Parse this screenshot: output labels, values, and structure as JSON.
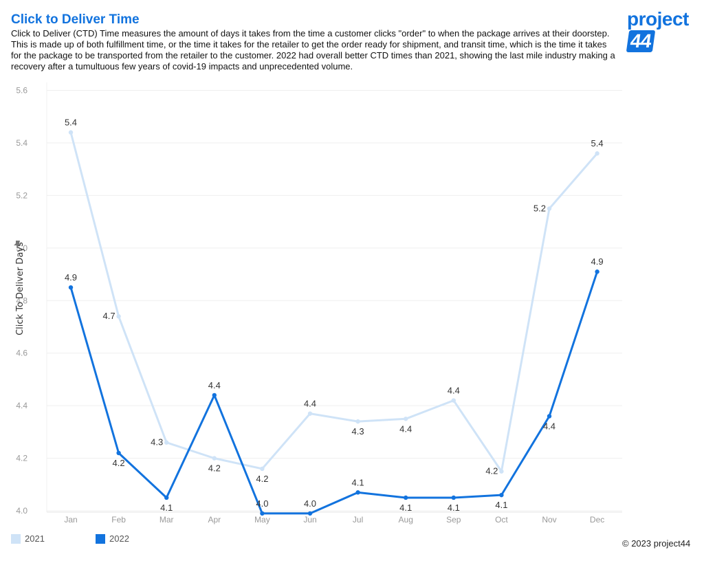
{
  "header": {
    "title": "Click to Deliver Time",
    "description": "Click to Deliver (CTD) Time measures the amount of days it takes from the time a customer clicks \"order\" to when the package arrives at their doorstep. This is made up of both fulfillment time, or the time it takes for the retailer to get the order ready for shipment, and transit time, which is the time it takes for the package to be transported from the retailer to the customer. 2022 had overall better CTD times than 2021, showing the last mile industry making a recovery after a tumultuous few years of covid-19 impacts and unprecedented volume."
  },
  "logo": {
    "text": "project",
    "number": "44"
  },
  "footer": {
    "copyright": "© 2023 project44"
  },
  "chart_data": {
    "type": "line",
    "title": "",
    "xlabel": "",
    "ylabel": "Click To Deliver Days",
    "ylim": [
      3.995,
      5.63
    ],
    "yticks": [
      4.0,
      4.2,
      4.4,
      4.6,
      4.8,
      5.0,
      5.2,
      5.4,
      5.6
    ],
    "ytick_labels": [
      "4.0",
      "4.2",
      "4.4",
      "4.6",
      "4.8",
      "5.0",
      "5.2",
      "5.4",
      "5.6"
    ],
    "categories": [
      "Jan",
      "Feb",
      "Mar",
      "Apr",
      "May",
      "Jun",
      "Jul",
      "Aug",
      "Sep",
      "Oct",
      "Nov",
      "Dec"
    ],
    "grid": true,
    "legend_position": "bottom-left",
    "series": [
      {
        "name": "2021",
        "color": "#cfe3f7",
        "values": [
          5.44,
          4.74,
          4.26,
          4.2,
          4.16,
          4.37,
          4.34,
          4.35,
          4.42,
          4.15,
          5.15,
          5.36
        ],
        "labels": [
          "5.4",
          "4.7",
          "4.3",
          "4.2",
          "4.2",
          "4.4",
          "4.3",
          "4.4",
          "4.4",
          "4.2",
          "5.2",
          "5.4"
        ],
        "label_pos": [
          "above",
          "left",
          "left",
          "below",
          "below",
          "above",
          "below",
          "below",
          "above",
          "left",
          "left",
          "above"
        ]
      },
      {
        "name": "2022",
        "color": "#1273de",
        "values": [
          4.85,
          4.22,
          4.05,
          4.44,
          3.99,
          3.99,
          4.07,
          4.05,
          4.05,
          4.06,
          4.36,
          4.91
        ],
        "labels": [
          "4.9",
          "4.2",
          "4.1",
          "4.4",
          "4.0",
          "4.0",
          "4.1",
          "4.1",
          "4.1",
          "4.1",
          "4.4",
          "4.9"
        ],
        "label_pos": [
          "above",
          "below",
          "below",
          "above",
          "above",
          "above",
          "above",
          "below",
          "below",
          "below",
          "below",
          "above"
        ]
      }
    ]
  }
}
